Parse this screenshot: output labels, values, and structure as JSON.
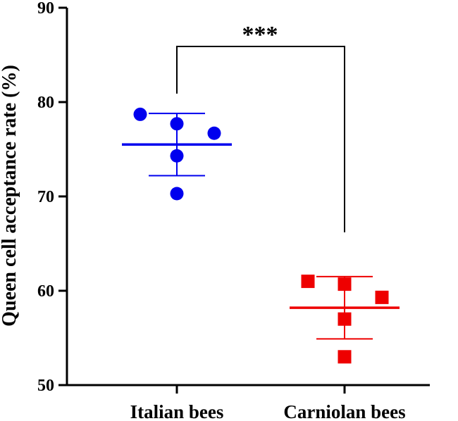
{
  "chart_data": {
    "type": "scatter",
    "ylabel": "Queen cell acceptance rate (%)",
    "ylim": [
      50,
      90
    ],
    "yticks": [
      50,
      60,
      70,
      80,
      90
    ],
    "categories": [
      "Italian bees",
      "Carniolan bees"
    ],
    "series": [
      {
        "category": "Italian bees",
        "color": "#0000ee",
        "marker": "circle",
        "values": [
          78.7,
          77.7,
          76.7,
          74.3,
          70.3
        ],
        "mean": 75.5,
        "sd": 3.3
      },
      {
        "category": "Carniolan bees",
        "color": "#ee0000",
        "marker": "square",
        "values": [
          61.0,
          60.7,
          59.3,
          57.0,
          53.0
        ],
        "mean": 58.2,
        "sd": 3.3
      }
    ],
    "annotation": "***"
  }
}
